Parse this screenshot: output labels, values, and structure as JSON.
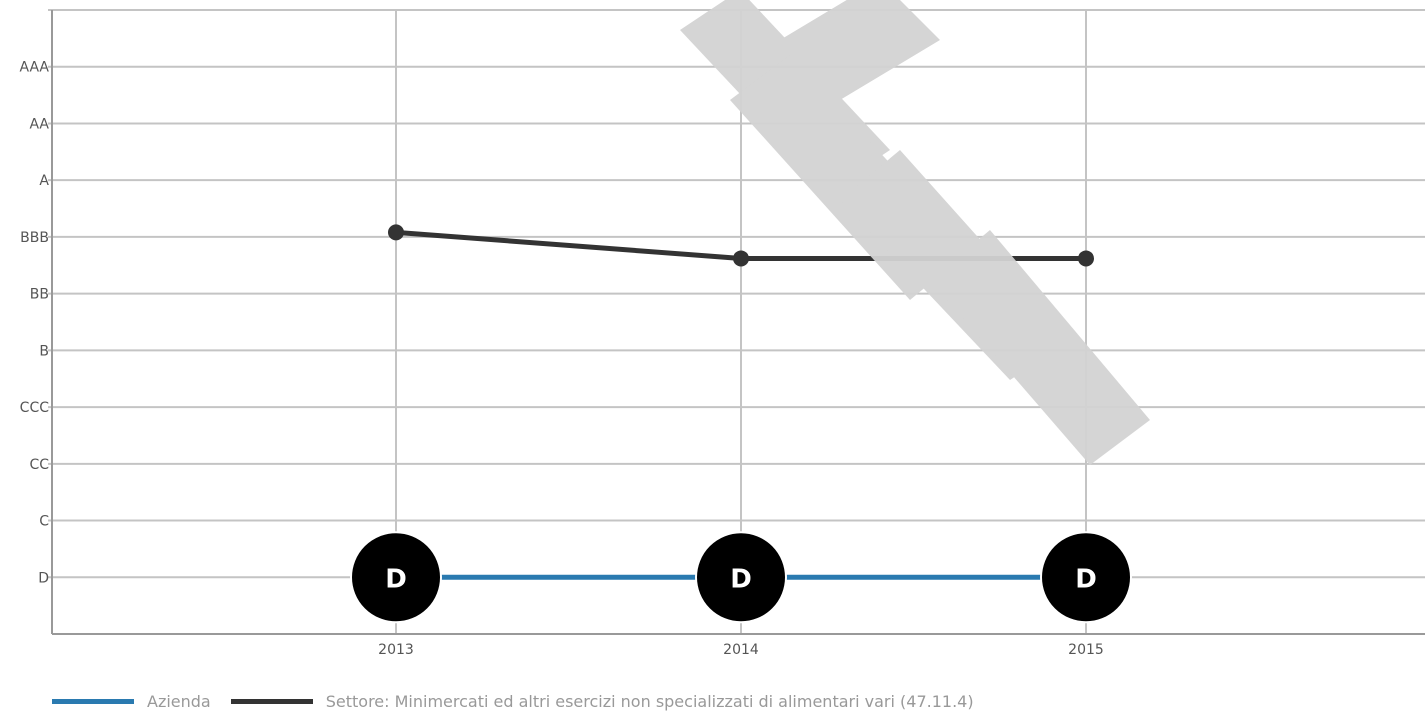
{
  "chart_data": {
    "type": "line",
    "categories": [
      "2013",
      "2014",
      "2015"
    ],
    "y_categories": [
      "D",
      "C",
      "CC",
      "CCC",
      "B",
      "BB",
      "BBB",
      "A",
      "AA",
      "AAA"
    ],
    "series": [
      {
        "name": "Azienda",
        "color": "#2a7ab0",
        "values": [
          0,
          0,
          0
        ],
        "point_labels": [
          "D",
          "D",
          "D"
        ]
      },
      {
        "name": "Settore: Minimercati ed altri esercizi non specializzati di alimentari vari (47.11.4)",
        "color": "#333333",
        "values": [
          6.08,
          5.62,
          5.62
        ]
      }
    ],
    "ylim": [
      -1,
      10
    ],
    "grid": true,
    "legend_position": "bottom-left"
  },
  "watermark": {
    "text": "MILE",
    "color": "#d3d3d3"
  }
}
